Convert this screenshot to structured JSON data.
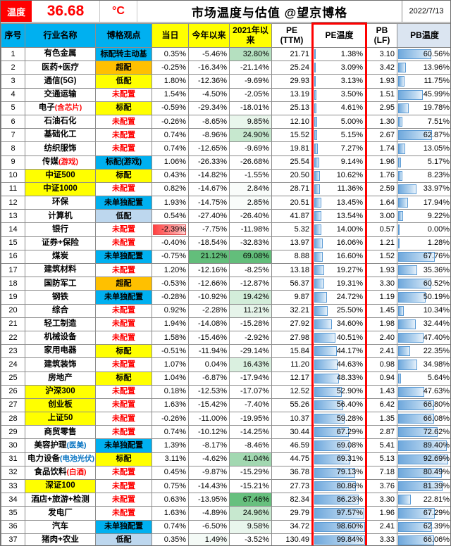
{
  "header": {
    "temp_label": "温度",
    "temp_value": "36.68",
    "temp_unit": "°C",
    "title": "市场温度与估值 @望京博格",
    "date": "2022/7/13"
  },
  "columns": [
    {
      "id": "no",
      "label": "序号"
    },
    {
      "id": "name",
      "label": "行业名称"
    },
    {
      "id": "view",
      "label": "博格观点"
    },
    {
      "id": "day",
      "label": "当日"
    },
    {
      "id": "ytd",
      "label": "今年以来"
    },
    {
      "id": "y2021",
      "label": "2021年以来"
    },
    {
      "id": "pe",
      "label": "PE",
      "sub": "(TTM)"
    },
    {
      "id": "pe_temp",
      "label": "PE温度"
    },
    {
      "id": "pb",
      "label": "PB",
      "sub": "(LF)"
    },
    {
      "id": "pb_temp",
      "label": "PB温度"
    }
  ],
  "colors": {
    "accent_red": "#FF0000",
    "header_cyan": "#00B0F0",
    "header_yellow": "#FFFF00",
    "view_orange": "#FFC000",
    "view_lightblue": "#BDD7EE",
    "bar_blue": "#6FA8DC",
    "bar_red": "#FF4040",
    "scale_green": "#63BE7B"
  },
  "scales": {
    "ytd_green_max": 21.12,
    "y2021_green_max": 69.08,
    "day_red_min": -2.39
  },
  "rows": [
    {
      "no": 1,
      "name": "有色金属",
      "note": "",
      "note_color": "",
      "name_bg": "",
      "view": "标配转主动基",
      "view_style": "cyan",
      "day": "0.35%",
      "ytd": "-5.46%",
      "y2021": "32.80%",
      "pe": "21.71",
      "pe_temp": "1.38%",
      "pb": "3.10",
      "pb_temp": "60.56%"
    },
    {
      "no": 2,
      "name": "医药+医疗",
      "note": "",
      "note_color": "",
      "name_bg": "",
      "view": "超配",
      "view_style": "orange",
      "day": "-0.25%",
      "ytd": "-16.34%",
      "y2021": "-21.14%",
      "pe": "25.24",
      "pe_temp": "3.09%",
      "pb": "3.42",
      "pb_temp": "13.96%"
    },
    {
      "no": 3,
      "name": "通信(5G)",
      "note": "",
      "note_color": "",
      "name_bg": "",
      "view": "低配",
      "view_style": "yellow",
      "day": "1.80%",
      "ytd": "-12.36%",
      "y2021": "-9.69%",
      "pe": "29.93",
      "pe_temp": "3.13%",
      "pb": "1.93",
      "pb_temp": "11.75%"
    },
    {
      "no": 4,
      "name": "交通运输",
      "note": "",
      "note_color": "",
      "name_bg": "",
      "view": "未配置",
      "view_style": "none",
      "day": "1.54%",
      "ytd": "-4.50%",
      "y2021": "-2.05%",
      "pe": "13.19",
      "pe_temp": "3.50%",
      "pb": "1.51",
      "pb_temp": "45.99%"
    },
    {
      "no": 5,
      "name": "电子",
      "note": "(含芯片)",
      "note_color": "red",
      "name_bg": "",
      "view": "标配",
      "view_style": "yellow",
      "day": "-0.59%",
      "ytd": "-29.34%",
      "y2021": "-18.01%",
      "pe": "25.13",
      "pe_temp": "4.61%",
      "pb": "2.95",
      "pb_temp": "19.78%"
    },
    {
      "no": 6,
      "name": "石油石化",
      "note": "",
      "note_color": "",
      "name_bg": "",
      "view": "未配置",
      "view_style": "none",
      "day": "-0.26%",
      "ytd": "-8.65%",
      "y2021": "9.85%",
      "pe": "12.10",
      "pe_temp": "5.00%",
      "pb": "1.30",
      "pb_temp": "7.51%"
    },
    {
      "no": 7,
      "name": "基础化工",
      "note": "",
      "note_color": "",
      "name_bg": "",
      "view": "未配置",
      "view_style": "none",
      "day": "0.74%",
      "ytd": "-8.96%",
      "y2021": "24.90%",
      "pe": "15.52",
      "pe_temp": "5.15%",
      "pb": "2.67",
      "pb_temp": "62.87%"
    },
    {
      "no": 8,
      "name": "纺织服饰",
      "note": "",
      "note_color": "",
      "name_bg": "",
      "view": "未配置",
      "view_style": "none",
      "day": "0.74%",
      "ytd": "-12.65%",
      "y2021": "-9.69%",
      "pe": "19.81",
      "pe_temp": "7.27%",
      "pb": "1.74",
      "pb_temp": "13.05%"
    },
    {
      "no": 9,
      "name": "传媒",
      "note": "(游戏)",
      "note_color": "red",
      "name_bg": "",
      "view": "标配(游戏)",
      "view_style": "cyan",
      "day": "1.06%",
      "ytd": "-26.33%",
      "y2021": "-26.68%",
      "pe": "25.54",
      "pe_temp": "9.14%",
      "pb": "1.96",
      "pb_temp": "5.17%"
    },
    {
      "no": 10,
      "name": "中证500",
      "note": "",
      "note_color": "",
      "name_bg": "yellow",
      "view": "标配",
      "view_style": "yellow",
      "day": "0.43%",
      "ytd": "-14.82%",
      "y2021": "-1.55%",
      "pe": "20.50",
      "pe_temp": "10.62%",
      "pb": "1.76",
      "pb_temp": "8.23%"
    },
    {
      "no": 11,
      "name": "中证1000",
      "note": "",
      "note_color": "",
      "name_bg": "yellow",
      "view": "未配置",
      "view_style": "none",
      "day": "0.82%",
      "ytd": "-14.67%",
      "y2021": "2.84%",
      "pe": "28.71",
      "pe_temp": "11.36%",
      "pb": "2.59",
      "pb_temp": "33.97%"
    },
    {
      "no": 12,
      "name": "环保",
      "note": "",
      "note_color": "",
      "name_bg": "",
      "view": "未单独配置",
      "view_style": "cyan",
      "day": "1.93%",
      "ytd": "-14.75%",
      "y2021": "2.85%",
      "pe": "20.51",
      "pe_temp": "13.45%",
      "pb": "1.64",
      "pb_temp": "17.94%"
    },
    {
      "no": 13,
      "name": "计算机",
      "note": "",
      "note_color": "",
      "name_bg": "",
      "view": "低配",
      "view_style": "lightblue",
      "day": "0.54%",
      "ytd": "-27.40%",
      "y2021": "-26.40%",
      "pe": "41.87",
      "pe_temp": "13.54%",
      "pb": "3.00",
      "pb_temp": "9.22%"
    },
    {
      "no": 14,
      "name": "银行",
      "note": "",
      "note_color": "",
      "name_bg": "",
      "view": "未配置",
      "view_style": "none",
      "day": "-2.39%",
      "ytd": "-7.75%",
      "y2021": "-11.98%",
      "pe": "5.32",
      "pe_temp": "14.00%",
      "pb": "0.57",
      "pb_temp": "0.00%"
    },
    {
      "no": 15,
      "name": "证券+保险",
      "note": "",
      "note_color": "",
      "name_bg": "",
      "view": "未配置",
      "view_style": "none",
      "day": "-0.40%",
      "ytd": "-18.54%",
      "y2021": "-32.83%",
      "pe": "13.97",
      "pe_temp": "16.06%",
      "pb": "1.21",
      "pb_temp": "1.28%"
    },
    {
      "no": 16,
      "name": "煤炭",
      "note": "",
      "note_color": "",
      "name_bg": "",
      "view": "未单独配置",
      "view_style": "cyan",
      "day": "-0.75%",
      "ytd": "21.12%",
      "y2021": "69.08%",
      "pe": "8.88",
      "pe_temp": "16.60%",
      "pb": "1.52",
      "pb_temp": "67.76%"
    },
    {
      "no": 17,
      "name": "建筑材料",
      "note": "",
      "note_color": "",
      "name_bg": "",
      "view": "未配置",
      "view_style": "none",
      "day": "1.20%",
      "ytd": "-12.16%",
      "y2021": "-8.25%",
      "pe": "13.18",
      "pe_temp": "19.27%",
      "pb": "1.93",
      "pb_temp": "35.36%"
    },
    {
      "no": 18,
      "name": "国防军工",
      "note": "",
      "note_color": "",
      "name_bg": "",
      "view": "超配",
      "view_style": "orange",
      "day": "-0.53%",
      "ytd": "-12.66%",
      "y2021": "-12.87%",
      "pe": "56.37",
      "pe_temp": "19.31%",
      "pb": "3.30",
      "pb_temp": "60.52%"
    },
    {
      "no": 19,
      "name": "钢铁",
      "note": "",
      "note_color": "",
      "name_bg": "",
      "view": "未单独配置",
      "view_style": "cyan",
      "day": "-0.28%",
      "ytd": "-10.92%",
      "y2021": "19.42%",
      "pe": "9.87",
      "pe_temp": "24.72%",
      "pb": "1.19",
      "pb_temp": "50.19%"
    },
    {
      "no": 20,
      "name": "综合",
      "note": "",
      "note_color": "",
      "name_bg": "",
      "view": "未配置",
      "view_style": "none",
      "day": "0.92%",
      "ytd": "-2.28%",
      "y2021": "11.21%",
      "pe": "32.21",
      "pe_temp": "25.50%",
      "pb": "1.45",
      "pb_temp": "10.34%"
    },
    {
      "no": 21,
      "name": "轻工制造",
      "note": "",
      "note_color": "",
      "name_bg": "",
      "view": "未配置",
      "view_style": "none",
      "day": "1.94%",
      "ytd": "-14.08%",
      "y2021": "-15.28%",
      "pe": "27.92",
      "pe_temp": "34.60%",
      "pb": "1.98",
      "pb_temp": "32.44%"
    },
    {
      "no": 22,
      "name": "机械设备",
      "note": "",
      "note_color": "",
      "name_bg": "",
      "view": "未配置",
      "view_style": "none",
      "day": "1.58%",
      "ytd": "-15.46%",
      "y2021": "-2.92%",
      "pe": "27.98",
      "pe_temp": "40.51%",
      "pb": "2.40",
      "pb_temp": "47.40%"
    },
    {
      "no": 23,
      "name": "家用电器",
      "note": "",
      "note_color": "",
      "name_bg": "",
      "view": "标配",
      "view_style": "yellow",
      "day": "-0.51%",
      "ytd": "-11.94%",
      "y2021": "-29.14%",
      "pe": "15.84",
      "pe_temp": "44.17%",
      "pb": "2.41",
      "pb_temp": "22.35%"
    },
    {
      "no": 24,
      "name": "建筑装饰",
      "note": "",
      "note_color": "",
      "name_bg": "",
      "view": "未配置",
      "view_style": "none",
      "day": "1.07%",
      "ytd": "0.04%",
      "y2021": "16.43%",
      "pe": "11.20",
      "pe_temp": "44.63%",
      "pb": "0.98",
      "pb_temp": "34.98%"
    },
    {
      "no": 25,
      "name": "房地产",
      "note": "",
      "note_color": "",
      "name_bg": "",
      "view": "标配",
      "view_style": "yellow",
      "day": "1.04%",
      "ytd": "-6.87%",
      "y2021": "-17.94%",
      "pe": "12.17",
      "pe_temp": "48.33%",
      "pb": "0.94",
      "pb_temp": "5.64%"
    },
    {
      "no": 26,
      "name": "沪深300",
      "note": "",
      "note_color": "",
      "name_bg": "yellow",
      "view": "未配置",
      "view_style": "none",
      "day": "0.18%",
      "ytd": "-12.53%",
      "y2021": "-17.07%",
      "pe": "12.52",
      "pe_temp": "52.90%",
      "pb": "1.43",
      "pb_temp": "47.63%"
    },
    {
      "no": 27,
      "name": "创业板",
      "note": "",
      "note_color": "",
      "name_bg": "yellow",
      "view": "未配置",
      "view_style": "none",
      "day": "1.63%",
      "ytd": "-15.42%",
      "y2021": "-7.40%",
      "pe": "55.26",
      "pe_temp": "56.40%",
      "pb": "6.42",
      "pb_temp": "66.80%"
    },
    {
      "no": 28,
      "name": "上证50",
      "note": "",
      "note_color": "",
      "name_bg": "yellow",
      "view": "未配置",
      "view_style": "none",
      "day": "-0.26%",
      "ytd": "-11.00%",
      "y2021": "-19.95%",
      "pe": "10.37",
      "pe_temp": "59.28%",
      "pb": "1.35",
      "pb_temp": "66.08%"
    },
    {
      "no": 29,
      "name": "商贸零售",
      "note": "",
      "note_color": "",
      "name_bg": "",
      "view": "未配置",
      "view_style": "none",
      "day": "0.74%",
      "ytd": "-10.12%",
      "y2021": "-14.25%",
      "pe": "30.44",
      "pe_temp": "67.29%",
      "pb": "2.87",
      "pb_temp": "72.62%"
    },
    {
      "no": 30,
      "name": "美容护理",
      "note": "(医美)",
      "note_color": "blue",
      "name_bg": "",
      "view": "未单独配置",
      "view_style": "cyan",
      "day": "1.39%",
      "ytd": "-8.17%",
      "y2021": "-8.46%",
      "pe": "46.59",
      "pe_temp": "69.08%",
      "pb": "5.41",
      "pb_temp": "89.40%"
    },
    {
      "no": 31,
      "name": "电力设备",
      "note": "(电池光伏)",
      "note_color": "blue",
      "name_bg": "",
      "view": "标配",
      "view_style": "yellow",
      "day": "3.11%",
      "ytd": "-4.62%",
      "y2021": "41.04%",
      "pe": "44.75",
      "pe_temp": "69.31%",
      "pb": "5.13",
      "pb_temp": "92.69%"
    },
    {
      "no": 32,
      "name": "食品饮料",
      "note": "(白酒)",
      "note_color": "red",
      "name_bg": "",
      "view": "未配置",
      "view_style": "none",
      "day": "0.45%",
      "ytd": "-9.87%",
      "y2021": "-15.29%",
      "pe": "36.78",
      "pe_temp": "79.13%",
      "pb": "7.18",
      "pb_temp": "80.49%"
    },
    {
      "no": 33,
      "name": "深证100",
      "note": "",
      "note_color": "",
      "name_bg": "yellow",
      "view": "未配置",
      "view_style": "none",
      "day": "0.75%",
      "ytd": "-14.43%",
      "y2021": "-15.21%",
      "pe": "27.73",
      "pe_temp": "80.86%",
      "pb": "3.76",
      "pb_temp": "81.39%"
    },
    {
      "no": 34,
      "name": "酒店+旅游+检测",
      "note": "",
      "note_color": "",
      "name_bg": "",
      "view": "未配置",
      "view_style": "none",
      "day": "0.63%",
      "ytd": "-13.95%",
      "y2021": "67.46%",
      "pe": "82.34",
      "pe_temp": "86.23%",
      "pb": "3.30",
      "pb_temp": "22.81%"
    },
    {
      "no": 35,
      "name": "发电厂",
      "note": "",
      "note_color": "",
      "name_bg": "",
      "view": "未配置",
      "view_style": "none",
      "day": "1.63%",
      "ytd": "-4.89%",
      "y2021": "24.96%",
      "pe": "29.79",
      "pe_temp": "97.57%",
      "pb": "1.96",
      "pb_temp": "67.29%"
    },
    {
      "no": 36,
      "name": "汽车",
      "note": "",
      "note_color": "",
      "name_bg": "",
      "view": "未单独配置",
      "view_style": "cyan",
      "day": "0.74%",
      "ytd": "-6.50%",
      "y2021": "9.58%",
      "pe": "34.72",
      "pe_temp": "98.60%",
      "pb": "2.41",
      "pb_temp": "62.39%"
    },
    {
      "no": 37,
      "name": "猪肉+农业",
      "note": "",
      "note_color": "",
      "name_bg": "",
      "view": "低配",
      "view_style": "lightblue",
      "day": "0.35%",
      "ytd": "1.49%",
      "y2021": "-3.52%",
      "pe": "130.49",
      "pe_temp": "99.84%",
      "pb": "3.33",
      "pb_temp": "66.06%"
    }
  ]
}
